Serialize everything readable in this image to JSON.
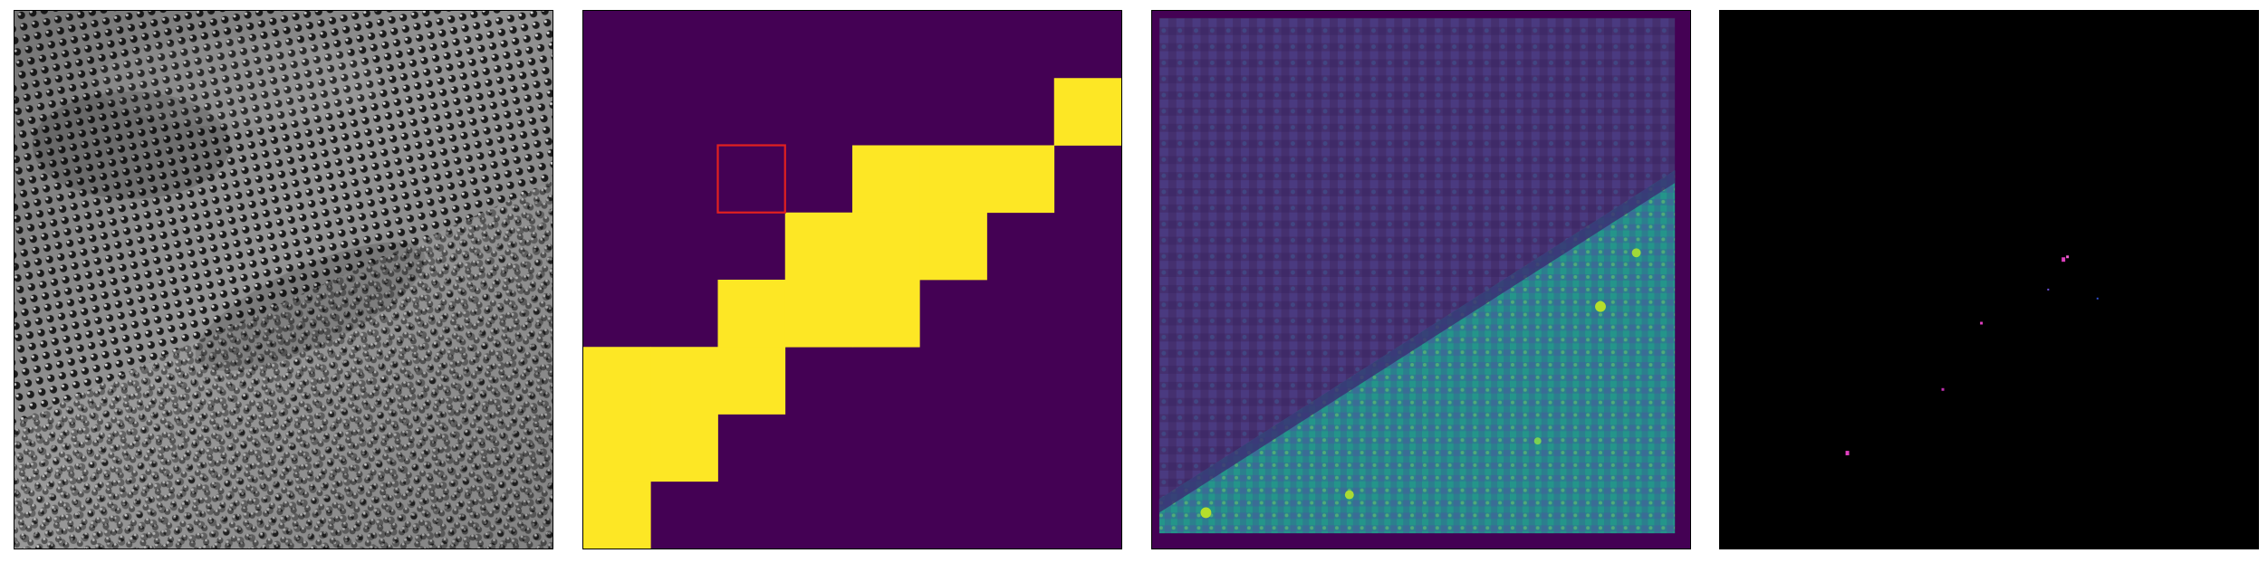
{
  "figure": {
    "panels": [
      {
        "id": "hrtem-lattice-image",
        "kind": "grayscale-micrograph"
      },
      {
        "id": "binary-segmentation-mask",
        "kind": "viridis-map",
        "grid_size": 8,
        "colors": {
          "background": "#440154",
          "foreground": "#fde725",
          "selection": "#e02020"
        },
        "selected_cell": [
          2,
          2
        ],
        "mask_cells": [
          [
            1,
            7
          ],
          [
            2,
            4
          ],
          [
            2,
            5
          ],
          [
            2,
            6
          ],
          [
            3,
            3
          ],
          [
            3,
            4
          ],
          [
            3,
            5
          ],
          [
            4,
            2
          ],
          [
            4,
            3
          ],
          [
            4,
            4
          ],
          [
            5,
            0
          ],
          [
            5,
            1
          ],
          [
            5,
            2
          ],
          [
            6,
            0
          ],
          [
            6,
            1
          ],
          [
            7,
            0
          ]
        ]
      },
      {
        "id": "heatmap-prediction",
        "kind": "viridis-heatmap",
        "colors": {
          "border": "#440154",
          "low": "#46307a",
          "high": "#2a8a8a"
        }
      },
      {
        "id": "sparse-difference-map",
        "kind": "black-background",
        "colors": {
          "background": "#000000",
          "spots": "#e040c0"
        }
      }
    ]
  }
}
